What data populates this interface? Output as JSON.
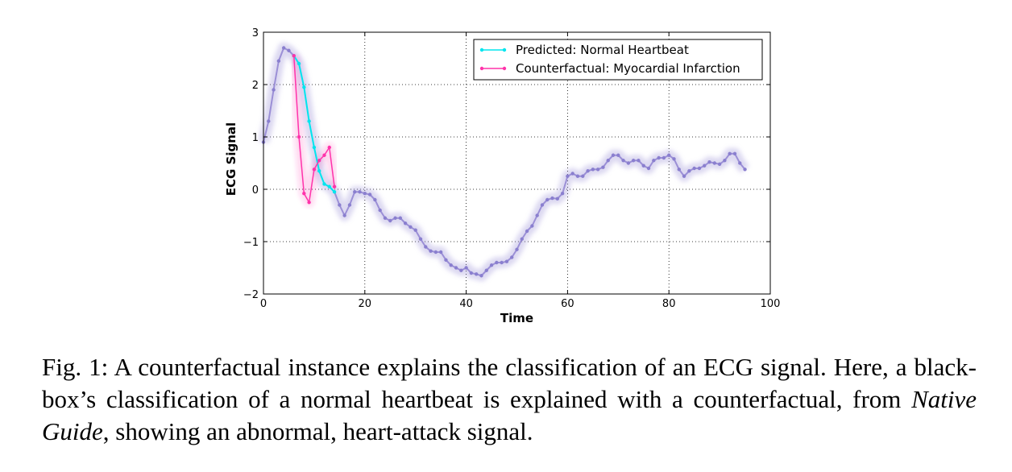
{
  "chart_data": {
    "type": "line",
    "xlabel": "Time",
    "ylabel": "ECG Signal",
    "xlim": [
      0,
      100
    ],
    "ylim": [
      -2,
      3
    ],
    "xticks": [
      0,
      20,
      40,
      60,
      80,
      100
    ],
    "yticks": [
      -2,
      -1,
      0,
      1,
      2,
      3
    ],
    "ytick_labels": [
      "−2",
      "−1",
      "0",
      "1",
      "2",
      "3"
    ],
    "grid": true,
    "legend_position": "top-right",
    "series": [
      {
        "name": "Predicted: Normal Heartbeat",
        "color": "#00e5ee",
        "x": [
          0,
          1,
          2,
          3,
          4,
          5,
          6,
          7,
          8,
          9,
          10,
          11,
          12,
          13,
          14,
          15,
          16,
          17,
          18,
          19,
          20,
          21,
          22,
          23,
          24,
          25,
          26,
          27,
          28,
          29,
          30,
          31,
          32,
          33,
          34,
          35,
          36,
          37,
          38,
          39,
          40,
          41,
          42,
          43,
          44,
          45,
          46,
          47,
          48,
          49,
          50,
          51,
          52,
          53,
          54,
          55,
          56,
          57,
          58,
          59,
          60,
          61,
          62,
          63,
          64,
          65,
          66,
          67,
          68,
          69,
          70,
          71,
          72,
          73,
          74,
          75,
          76,
          77,
          78,
          79,
          80,
          81,
          82,
          83,
          84,
          85,
          86,
          87,
          88,
          89,
          90,
          91,
          92,
          93,
          94,
          95
        ],
        "y": [
          0.9,
          1.3,
          1.9,
          2.45,
          2.7,
          2.65,
          2.55,
          2.4,
          1.95,
          1.3,
          0.8,
          0.35,
          0.1,
          0.05,
          -0.05,
          -0.3,
          -0.5,
          -0.3,
          -0.05,
          -0.05,
          -0.08,
          -0.1,
          -0.2,
          -0.4,
          -0.55,
          -0.6,
          -0.55,
          -0.55,
          -0.65,
          -0.72,
          -0.78,
          -0.95,
          -1.1,
          -1.18,
          -1.2,
          -1.2,
          -1.35,
          -1.45,
          -1.5,
          -1.55,
          -1.5,
          -1.6,
          -1.62,
          -1.65,
          -1.55,
          -1.45,
          -1.4,
          -1.4,
          -1.38,
          -1.3,
          -1.15,
          -0.95,
          -0.8,
          -0.7,
          -0.5,
          -0.3,
          -0.2,
          -0.17,
          -0.18,
          -0.08,
          0.25,
          0.3,
          0.25,
          0.25,
          0.35,
          0.38,
          0.38,
          0.42,
          0.55,
          0.65,
          0.65,
          0.55,
          0.5,
          0.55,
          0.55,
          0.45,
          0.4,
          0.55,
          0.6,
          0.6,
          0.65,
          0.58,
          0.38,
          0.25,
          0.35,
          0.4,
          0.4,
          0.45,
          0.52,
          0.5,
          0.48,
          0.55,
          0.68,
          0.68,
          0.5,
          0.38
        ]
      },
      {
        "name": "Counterfactual: Myocardial Infarction",
        "color": "#ff33aa",
        "x": [
          6,
          7,
          8,
          9,
          10,
          11,
          12,
          13,
          14
        ],
        "y": [
          2.55,
          1.0,
          -0.08,
          -0.25,
          0.38,
          0.55,
          0.65,
          0.8,
          0.05
        ]
      }
    ],
    "overlap_color": "#9b8fd6"
  },
  "caption": {
    "label": "Fig. 1:",
    "text_before": " A counterfactual instance explains the classification of an ECG signal. Here, a black-box’s classification of a normal heartbeat is explained with a counterfactual, from ",
    "emphasis": "Native Guide",
    "text_after": ", showing an abnormal, heart-attack signal."
  }
}
